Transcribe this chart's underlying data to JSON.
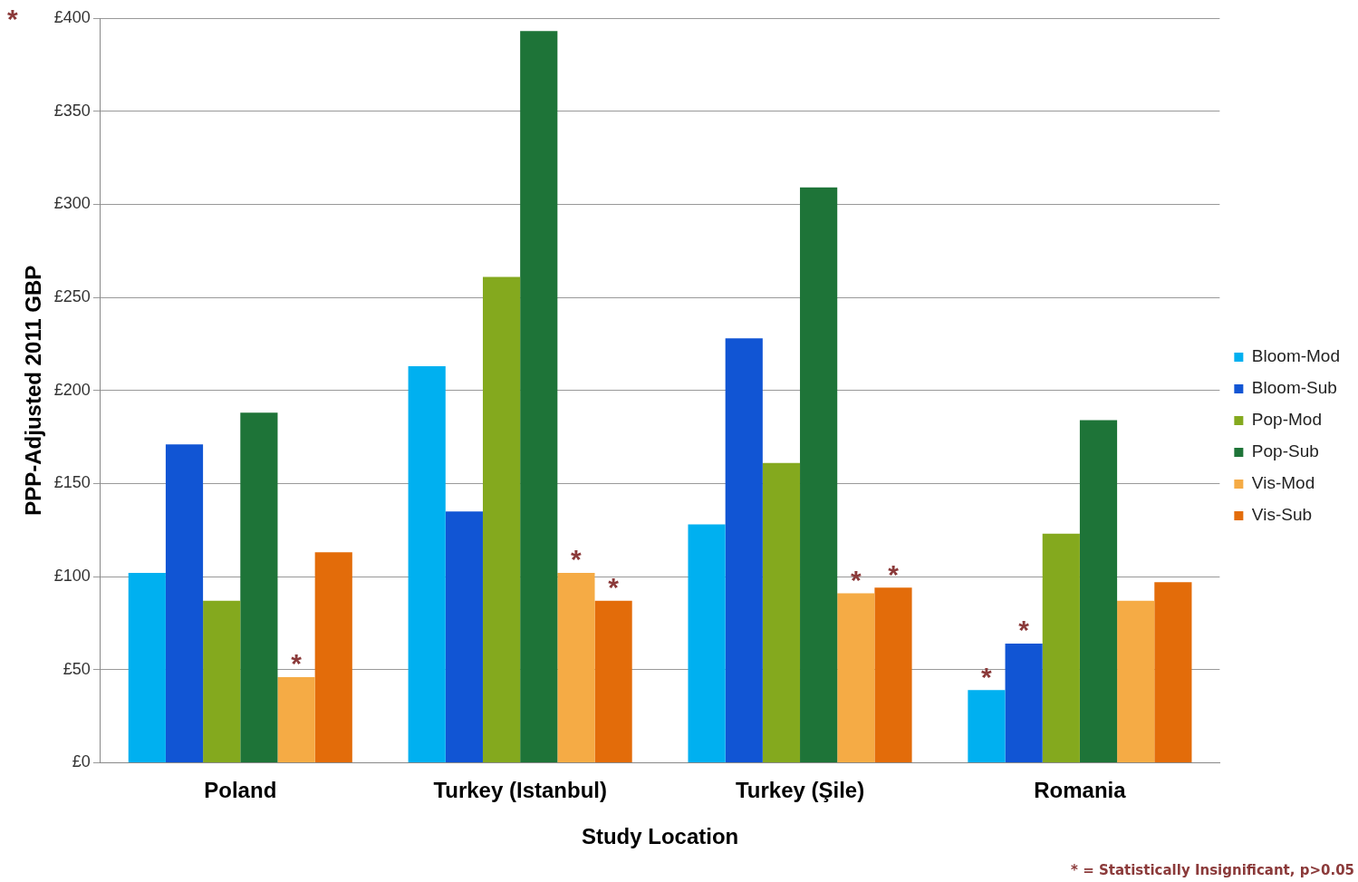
{
  "chart_data": {
    "type": "bar",
    "xlabel": "Study Location",
    "ylabel": "PPP-Adjusted 2011 GBP",
    "categories": [
      "Poland",
      "Turkey (Istanbul)",
      "Turkey (Şile)",
      "Romania"
    ],
    "series": [
      {
        "name": "Bloom-Mod",
        "color": "#00b0f0",
        "values": [
          102,
          213,
          128,
          39
        ]
      },
      {
        "name": "Bloom-Sub",
        "color": "#1155d4",
        "values": [
          171,
          135,
          228,
          64
        ]
      },
      {
        "name": "Pop-Mod",
        "color": "#84a91e",
        "values": [
          87,
          261,
          161,
          123
        ]
      },
      {
        "name": "Pop-Sub",
        "color": "#1e7438",
        "values": [
          188,
          393,
          309,
          184
        ]
      },
      {
        "name": "Vis-Mod",
        "color": "#f5ab45",
        "values": [
          46,
          102,
          91,
          87
        ]
      },
      {
        "name": "Vis-Sub",
        "color": "#e36c0a",
        "values": [
          113,
          87,
          94,
          97
        ]
      }
    ],
    "ylim": [
      0,
      400
    ],
    "yticks": [
      {
        "value": 0,
        "label": "£0"
      },
      {
        "value": 50,
        "label": "£50"
      },
      {
        "value": 100,
        "label": "£100"
      },
      {
        "value": 150,
        "label": "£150"
      },
      {
        "value": 200,
        "label": "£200"
      },
      {
        "value": 250,
        "label": "£250"
      },
      {
        "value": 300,
        "label": "£300"
      },
      {
        "value": 350,
        "label": "£350"
      },
      {
        "value": 400,
        "label": "£400"
      }
    ],
    "grid": "y",
    "legend": "right",
    "annotations": [
      "*",
      "* = Statistically Insignificant, p>0.05",
      {
        "text": "*",
        "x": "Poland",
        "y": 46
      },
      {
        "text": "*",
        "x": "Turkey (Istanbul)",
        "y": 102
      },
      "*",
      {
        "text": "*",
        "x": "Turkey (Şile)",
        "y": 94
      },
      "*",
      {
        "text": "*",
        "x": "Romania",
        "y": 64
      },
      "*"
    ]
  }
}
